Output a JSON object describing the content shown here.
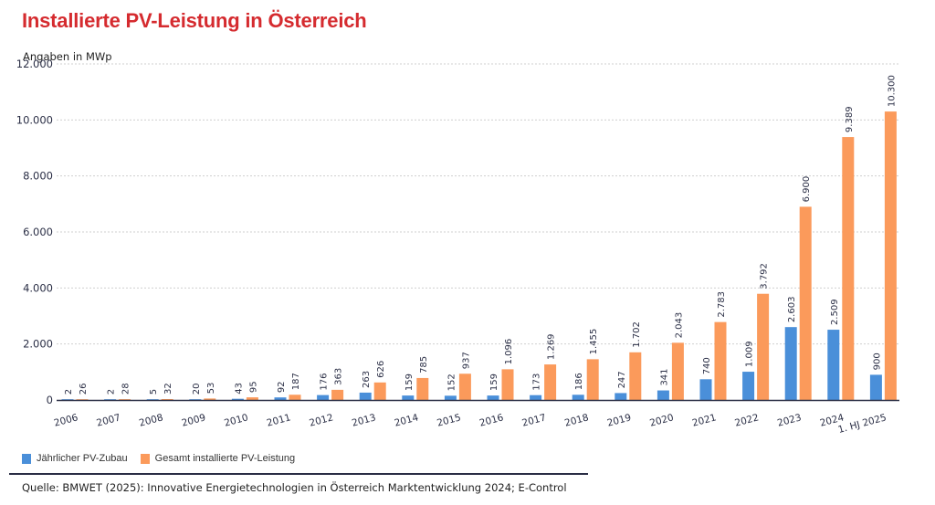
{
  "header": {
    "title": "Installierte PV-Leistung in Österreich",
    "unit_label": "Angaben in MWp"
  },
  "colors": {
    "title": "#d52b2f",
    "annual": "#4a8fd9",
    "total": "#fb9a5b",
    "axis": "#2a2e45",
    "grid": "#cfcfcf"
  },
  "legend": {
    "items": [
      {
        "label": "Jährlicher PV-Zubau",
        "color": "#4a8fd9"
      },
      {
        "label": "Gesamt installierte PV-Leistung",
        "color": "#fb9a5b"
      }
    ]
  },
  "footer": {
    "source": "Quelle: BMWET (2025): Innovative Energietechnologien in Österreich Marktentwicklung 2024; E-Control"
  },
  "chart_data": {
    "type": "bar",
    "title": "Installierte PV-Leistung in Österreich",
    "xlabel": "",
    "ylabel": "Angaben in MWp",
    "ylim": [
      0,
      12000
    ],
    "yticks": [
      0,
      2000,
      4000,
      6000,
      8000,
      10000,
      12000
    ],
    "ytick_labels": [
      "0",
      "2.000",
      "4.000",
      "6.000",
      "8.000",
      "10.000",
      "12.000"
    ],
    "grid": true,
    "legend_position": "bottom-left",
    "categories": [
      "2006",
      "2007",
      "2008",
      "2009",
      "2010",
      "2011",
      "2012",
      "2013",
      "2014",
      "2015",
      "2016",
      "2017",
      "2018",
      "2019",
      "2020",
      "2021",
      "2022",
      "2023",
      "2024",
      "1. HJ 2025"
    ],
    "series": [
      {
        "name": "Jährlicher PV-Zubau",
        "color": "#4a8fd9",
        "values": [
          2,
          2,
          5,
          20,
          43,
          92,
          176,
          263,
          159,
          152,
          159,
          173,
          186,
          247,
          341,
          740,
          1009,
          2603,
          2509,
          900
        ],
        "labels": [
          "2",
          "2",
          "5",
          "20",
          "43",
          "92",
          "176",
          "263",
          "159",
          "152",
          "159",
          "173",
          "186",
          "247",
          "341",
          "740",
          "1.009",
          "2.603",
          "2.509",
          "900"
        ]
      },
      {
        "name": "Gesamt installierte PV-Leistung",
        "color": "#fb9a5b",
        "values": [
          26,
          28,
          32,
          53,
          95,
          187,
          363,
          626,
          785,
          937,
          1096,
          1269,
          1455,
          1702,
          2043,
          2783,
          3792,
          6900,
          9389,
          10300
        ],
        "labels": [
          "26",
          "28",
          "32",
          "53",
          "95",
          "187",
          "363",
          "626",
          "785",
          "937",
          "1.096",
          "1.269",
          "1.455",
          "1.702",
          "2.043",
          "2.783",
          "3.792",
          "6.900",
          "9.389",
          "10.300"
        ]
      }
    ]
  }
}
